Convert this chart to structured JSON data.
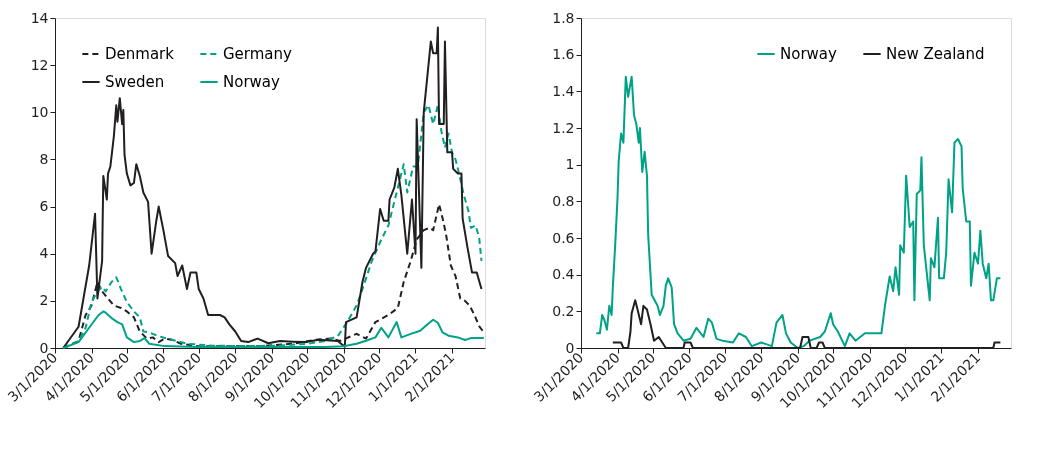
{
  "chart_data": [
    {
      "type": "line",
      "legend": "top left",
      "grid": false,
      "xlim": [
        "2020-03-01",
        "2021-03-01"
      ],
      "ylim": [
        0,
        14
      ],
      "yticks": [
        0,
        2,
        4,
        6,
        8,
        10,
        12,
        14
      ],
      "xticks": [
        {
          "value": "2020-03-01",
          "label": "3/1/2020"
        },
        {
          "value": "2020-04-01",
          "label": "4/1/2020"
        },
        {
          "value": "2020-05-01",
          "label": "5/1/2020"
        },
        {
          "value": "2020-06-01",
          "label": "6/1/2020"
        },
        {
          "value": "2020-07-01",
          "label": "7/1/2020"
        },
        {
          "value": "2020-08-01",
          "label": "8/1/2020"
        },
        {
          "value": "2020-09-01",
          "label": "9/1/2020"
        },
        {
          "value": "2020-10-01",
          "label": "10/1/2020"
        },
        {
          "value": "2020-11-01",
          "label": "11/1/2020"
        },
        {
          "value": "2020-12-01",
          "label": "12/1/2020"
        },
        {
          "value": "2021-01-01",
          "label": "1/1/2021"
        },
        {
          "value": "2021-02-01",
          "label": "2/1/2021"
        }
      ],
      "series": [
        {
          "name": "Denmark",
          "color": "#231f20",
          "line_style": "dashed",
          "x": [
            "2020-03-08",
            "2020-03-21",
            "2020-03-27",
            "2020-04-01",
            "2020-04-06",
            "2020-04-10",
            "2020-04-15",
            "2020-04-20",
            "2020-04-26",
            "2020-05-01",
            "2020-05-07",
            "2020-05-12",
            "2020-05-18",
            "2020-05-23",
            "2020-05-28",
            "2020-06-02",
            "2020-06-08",
            "2020-06-16",
            "2020-06-30",
            "2020-07-27",
            "2020-08-23",
            "2020-09-19",
            "2020-10-08",
            "2020-10-21",
            "2020-10-29",
            "2020-11-12",
            "2020-11-20",
            "2020-11-28",
            "2020-12-09",
            "2020-12-17",
            "2020-12-22",
            "2020-12-28",
            "2021-01-02",
            "2021-01-08",
            "2021-01-13",
            "2021-01-16",
            "2021-01-21",
            "2021-01-24",
            "2021-01-27",
            "2021-01-31",
            "2021-02-04",
            "2021-02-08",
            "2021-02-12",
            "2021-02-16",
            "2021-02-20",
            "2021-02-24",
            "2021-02-28"
          ],
          "values": [
            0,
            0.3,
            1.4,
            1.8,
            2.8,
            2.4,
            2.1,
            1.8,
            1.7,
            1.55,
            1.3,
            0.7,
            0.4,
            0.45,
            0.25,
            0.4,
            0.35,
            0.18,
            0.08,
            0.07,
            0.08,
            0.18,
            0.35,
            0.4,
            0.3,
            0.6,
            0.4,
            1.1,
            1.4,
            1.7,
            2.8,
            3.7,
            4.6,
            5.0,
            5.1,
            5.0,
            6.1,
            5.5,
            4.8,
            3.5,
            3.05,
            2.1,
            2.0,
            1.8,
            1.4,
            0.93,
            0.66
          ]
        },
        {
          "name": "Germany",
          "color": "#00a287",
          "line_style": "dashed",
          "x": [
            "2020-03-08",
            "2020-03-21",
            "2020-03-27",
            "2020-04-01",
            "2020-04-06",
            "2020-04-10",
            "2020-04-13",
            "2020-04-18",
            "2020-04-22",
            "2020-04-26",
            "2020-05-01",
            "2020-05-07",
            "2020-05-12",
            "2020-05-15",
            "2020-05-20",
            "2020-05-28",
            "2020-06-08",
            "2020-06-21",
            "2020-07-13",
            "2020-08-09",
            "2020-09-05",
            "2020-10-02",
            "2020-10-16",
            "2020-10-27",
            "2020-11-04",
            "2020-11-12",
            "2020-11-17",
            "2020-11-25",
            "2020-12-03",
            "2020-12-09",
            "2020-12-14",
            "2020-12-18",
            "2020-12-22",
            "2020-12-25",
            "2020-12-30",
            "2021-01-03",
            "2021-01-08",
            "2021-01-12",
            "2021-01-16",
            "2021-01-20",
            "2021-01-23",
            "2021-01-26",
            "2021-01-29",
            "2021-02-01",
            "2021-02-04",
            "2021-02-06",
            "2021-02-11",
            "2021-02-15",
            "2021-02-17",
            "2021-02-21",
            "2021-02-24",
            "2021-02-26"
          ],
          "values": [
            0,
            0.3,
            0.86,
            1.95,
            2.4,
            2.6,
            2.4,
            2.8,
            3.0,
            2.5,
            1.95,
            1.55,
            1.3,
            0.7,
            0.66,
            0.5,
            0.35,
            0.18,
            0.1,
            0.08,
            0.1,
            0.18,
            0.3,
            0.5,
            1.1,
            1.8,
            2.5,
            3.7,
            4.6,
            5.2,
            6.2,
            7.0,
            7.8,
            6.6,
            7.7,
            7.7,
            10.0,
            10.3,
            9.5,
            10.3,
            9.2,
            8.5,
            9.1,
            8.3,
            8.0,
            7.6,
            6.5,
            5.8,
            5.1,
            5.2,
            4.7,
            3.7
          ]
        },
        {
          "name": "Sweden",
          "color": "#231f20",
          "line_style": "solid",
          "x": [
            "2020-03-08",
            "2020-03-21",
            "2020-03-30",
            "2020-04-04",
            "2020-04-06",
            "2020-04-10",
            "2020-04-11",
            "2020-04-14",
            "2020-04-15",
            "2020-04-17",
            "2020-04-20",
            "2020-04-22",
            "2020-04-23",
            "2020-04-25",
            "2020-04-27",
            "2020-04-28",
            "2020-04-29",
            "2020-05-01",
            "2020-05-04",
            "2020-05-07",
            "2020-05-09",
            "2020-05-12",
            "2020-05-15",
            "2020-05-19",
            "2020-05-22",
            "2020-05-26",
            "2020-05-28",
            "2020-06-01",
            "2020-06-05",
            "2020-06-11",
            "2020-06-13",
            "2020-06-17",
            "2020-06-21",
            "2020-06-24",
            "2020-06-29",
            "2020-07-01",
            "2020-07-05",
            "2020-07-09",
            "2020-07-19",
            "2020-07-23",
            "2020-07-27",
            "2020-08-01",
            "2020-08-06",
            "2020-08-12",
            "2020-08-20",
            "2020-08-29",
            "2020-09-08",
            "2020-09-19",
            "2020-09-30",
            "2020-10-11",
            "2020-10-27",
            "2020-11-02",
            "2020-11-03",
            "2020-11-12",
            "2020-11-17",
            "2020-11-20",
            "2020-11-26",
            "2020-11-28",
            "2020-12-02",
            "2020-12-05",
            "2020-12-09",
            "2020-12-10",
            "2020-12-14",
            "2020-12-17",
            "2020-12-20",
            "2020-12-25",
            "2020-12-29",
            "2021-01-01",
            "2021-01-02",
            "2021-01-06",
            "2021-01-08",
            "2021-01-14",
            "2021-01-16",
            "2021-01-19",
            "2021-01-20",
            "2021-01-21",
            "2021-01-25",
            "2021-01-26",
            "2021-01-28",
            "2021-02-01",
            "2021-02-02",
            "2021-02-06",
            "2021-02-09",
            "2021-02-10",
            "2021-02-14",
            "2021-02-18",
            "2021-02-22",
            "2021-02-26"
          ],
          "values": [
            0,
            0.9,
            3.5,
            5.7,
            2.1,
            3.7,
            7.3,
            6.3,
            7.4,
            7.7,
            9.0,
            10.3,
            9.6,
            10.6,
            9.5,
            10.1,
            8.2,
            7.4,
            6.9,
            7.0,
            7.8,
            7.3,
            6.6,
            6.2,
            4.0,
            5.4,
            6.0,
            5.0,
            3.9,
            3.6,
            3.05,
            3.5,
            2.5,
            3.2,
            3.2,
            2.5,
            2.1,
            1.4,
            1.4,
            1.3,
            1.0,
            0.7,
            0.3,
            0.25,
            0.4,
            0.2,
            0.3,
            0.27,
            0.25,
            0.35,
            0.3,
            0.05,
            1.1,
            1.3,
            2.8,
            3.4,
            4.0,
            4.1,
            5.9,
            5.4,
            5.4,
            6.3,
            6.8,
            7.6,
            6.5,
            4.0,
            6.3,
            4.0,
            9.7,
            3.4,
            10.0,
            13.0,
            12.5,
            12.5,
            13.6,
            9.5,
            9.5,
            13.0,
            8.3,
            8.3,
            7.6,
            7.4,
            7.4,
            5.5,
            4.3,
            3.2,
            3.2,
            2.5
          ]
        },
        {
          "name": "Norway",
          "color": "#00a287",
          "line_style": "solid",
          "x": [
            "2020-03-08",
            "2020-03-21",
            "2020-03-30",
            "2020-04-07",
            "2020-04-11",
            "2020-04-13",
            "2020-04-18",
            "2020-04-23",
            "2020-04-27",
            "2020-05-01",
            "2020-05-07",
            "2020-05-12",
            "2020-05-16",
            "2020-05-20",
            "2020-06-02",
            "2020-06-30",
            "2020-08-23",
            "2020-10-16",
            "2020-11-01",
            "2020-11-12",
            "2020-11-20",
            "2020-11-28",
            "2020-12-03",
            "2020-12-09",
            "2020-12-16",
            "2020-12-20",
            "2020-12-28",
            "2021-01-05",
            "2021-01-11",
            "2021-01-16",
            "2021-01-20",
            "2021-01-24",
            "2021-01-29",
            "2021-02-06",
            "2021-02-12",
            "2021-02-17",
            "2021-02-28"
          ],
          "values": [
            0,
            0.25,
            0.86,
            1.4,
            1.55,
            1.5,
            1.27,
            1.1,
            1.0,
            0.45,
            0.25,
            0.3,
            0.42,
            0.18,
            0.08,
            0.04,
            0.04,
            0.04,
            0.07,
            0.18,
            0.31,
            0.45,
            0.86,
            0.45,
            1.1,
            0.45,
            0.6,
            0.73,
            1.0,
            1.2,
            1.07,
            0.66,
            0.52,
            0.45,
            0.34,
            0.42,
            0.42
          ]
        }
      ]
    },
    {
      "type": "line",
      "legend": "top right",
      "grid": false,
      "xlim": [
        "2020-03-01",
        "2021-03-01"
      ],
      "ylim": [
        0,
        1.8
      ],
      "yticks": [
        0,
        0.2,
        0.4,
        0.6,
        0.8,
        1,
        1.2,
        1.4,
        1.6,
        1.8
      ],
      "xticks": [
        {
          "value": "2020-03-01",
          "label": "3/1/2020"
        },
        {
          "value": "2020-04-01",
          "label": "4/1/2020"
        },
        {
          "value": "2020-05-01",
          "label": "5/1/2020"
        },
        {
          "value": "2020-06-01",
          "label": "6/1/2020"
        },
        {
          "value": "2020-07-01",
          "label": "7/1/2020"
        },
        {
          "value": "2020-08-01",
          "label": "8/1/2020"
        },
        {
          "value": "2020-09-01",
          "label": "9/1/2020"
        },
        {
          "value": "2020-10-01",
          "label": "10/1/2020"
        },
        {
          "value": "2020-11-01",
          "label": "11/1/2020"
        },
        {
          "value": "2020-12-01",
          "label": "12/1/2020"
        },
        {
          "value": "2021-01-01",
          "label": "1/1/2021"
        },
        {
          "value": "2021-02-01",
          "label": "2/1/2021"
        }
      ],
      "series": [
        {
          "name": "Norway",
          "color": "#00a287",
          "line_style": "solid",
          "x": [
            "2020-03-14",
            "2020-03-17",
            "2020-03-19",
            "2020-03-21",
            "2020-03-23",
            "2020-03-25",
            "2020-03-27",
            "2020-03-28",
            "2020-03-30",
            "2020-04-01",
            "2020-04-02",
            "2020-04-04",
            "2020-04-06",
            "2020-04-08",
            "2020-04-10",
            "2020-04-13",
            "2020-04-15",
            "2020-04-17",
            "2020-04-19",
            "2020-04-20",
            "2020-04-22",
            "2020-04-24",
            "2020-04-26",
            "2020-04-27",
            "2020-04-30",
            "2020-05-05",
            "2020-05-07",
            "2020-05-10",
            "2020-05-12",
            "2020-05-14",
            "2020-05-17",
            "2020-05-19",
            "2020-05-22",
            "2020-05-27",
            "2020-06-02",
            "2020-06-07",
            "2020-06-13",
            "2020-06-17",
            "2020-06-20",
            "2020-06-24",
            "2020-06-29",
            "2020-07-08",
            "2020-07-13",
            "2020-07-19",
            "2020-07-24",
            "2020-08-01",
            "2020-08-10",
            "2020-08-14",
            "2020-08-19",
            "2020-08-22",
            "2020-08-26",
            "2020-09-01",
            "2020-09-06",
            "2020-09-11",
            "2020-09-20",
            "2020-09-24",
            "2020-09-29",
            "2020-10-01",
            "2020-10-05",
            "2020-10-11",
            "2020-10-15",
            "2020-10-20",
            "2020-10-28",
            "2020-11-04",
            "2020-11-11",
            "2020-11-14",
            "2020-11-18",
            "2020-11-21",
            "2020-11-23",
            "2020-11-26",
            "2020-11-27",
            "2020-11-30",
            "2020-12-02",
            "2020-12-05",
            "2020-12-08",
            "2020-12-09",
            "2020-12-11",
            "2020-12-14",
            "2020-12-15",
            "2020-12-17",
            "2020-12-19",
            "2020-12-22",
            "2020-12-23",
            "2020-12-26",
            "2020-12-29",
            "2020-12-30",
            "2021-01-03",
            "2021-01-05",
            "2021-01-07",
            "2021-01-10",
            "2021-01-12",
            "2021-01-15",
            "2021-01-18",
            "2021-01-19",
            "2021-01-22",
            "2021-01-25",
            "2021-01-26",
            "2021-01-29",
            "2021-02-01",
            "2021-02-03",
            "2021-02-05",
            "2021-02-08",
            "2021-02-10",
            "2021-02-12",
            "2021-02-14",
            "2021-02-17",
            "2021-02-20"
          ],
          "values": [
            0.08,
            0.08,
            0.18,
            0.15,
            0.1,
            0.23,
            0.18,
            0.33,
            0.56,
            0.82,
            1.02,
            1.17,
            1.12,
            1.48,
            1.37,
            1.48,
            1.27,
            1.22,
            1.12,
            1.2,
            0.96,
            1.07,
            0.94,
            0.62,
            0.29,
            0.23,
            0.18,
            0.23,
            0.34,
            0.38,
            0.33,
            0.13,
            0.08,
            0.04,
            0.05,
            0.11,
            0.06,
            0.16,
            0.14,
            0.05,
            0.04,
            0.03,
            0.08,
            0.06,
            0.01,
            0.03,
            0.01,
            0.14,
            0.18,
            0.08,
            0.03,
            0,
            0.01,
            0.04,
            0.06,
            0.09,
            0.19,
            0.13,
            0.09,
            0.01,
            0.08,
            0.04,
            0.08,
            0.08,
            0.08,
            0.23,
            0.39,
            0.31,
            0.44,
            0.29,
            0.56,
            0.52,
            0.94,
            0.66,
            0.69,
            0.26,
            0.84,
            0.86,
            1.04,
            0.56,
            0.44,
            0.26,
            0.49,
            0.44,
            0.71,
            0.38,
            0.38,
            0.52,
            0.92,
            0.74,
            1.12,
            1.14,
            1.1,
            0.87,
            0.69,
            0.69,
            0.34,
            0.52,
            0.46,
            0.64,
            0.46,
            0.38,
            0.46,
            0.26,
            0.26,
            0.38,
            0.38
          ]
        },
        {
          "name": "New Zealand",
          "color": "#231f20",
          "line_style": "solid",
          "x": [
            "2020-03-28",
            "2020-04-04",
            "2020-04-06",
            "2020-04-10",
            "2020-04-12",
            "2020-04-13",
            "2020-04-16",
            "2020-04-18",
            "2020-04-21",
            "2020-04-23",
            "2020-04-26",
            "2020-04-29",
            "2020-05-02",
            "2020-05-06",
            "2020-05-09",
            "2020-05-12",
            "2020-05-27",
            "2020-05-28",
            "2020-06-02",
            "2020-06-04",
            "2020-09-03",
            "2020-09-05",
            "2020-09-10",
            "2020-09-12",
            "2020-09-17",
            "2020-09-19",
            "2020-09-22",
            "2020-09-24",
            "2021-02-14",
            "2021-02-15",
            "2021-02-20"
          ],
          "values": [
            0.03,
            0.03,
            0,
            0,
            0.09,
            0.19,
            0.26,
            0.21,
            0.13,
            0.23,
            0.21,
            0.13,
            0.04,
            0.06,
            0.03,
            0,
            0,
            0.03,
            0.03,
            0,
            0,
            0.06,
            0.06,
            0,
            0,
            0.03,
            0.03,
            0,
            0,
            0.03,
            0.03
          ]
        }
      ]
    }
  ]
}
